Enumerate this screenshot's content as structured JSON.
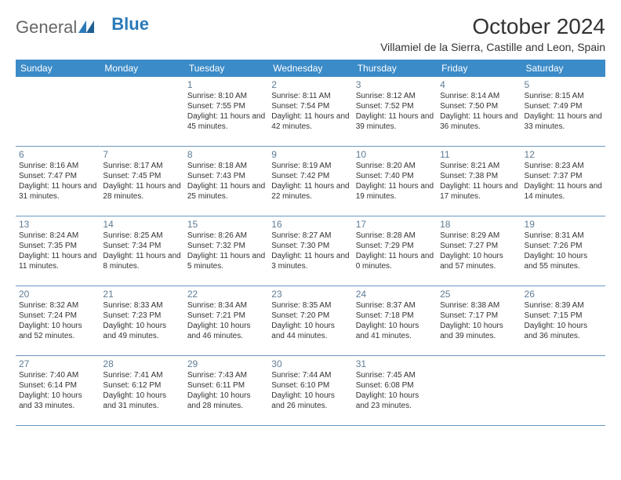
{
  "brand": {
    "part1": "General",
    "part2": "Blue"
  },
  "title": "October 2024",
  "location": "Villamiel de la Sierra, Castille and Leon, Spain",
  "colors": {
    "header_bg": "#3b8bc8",
    "header_text": "#ffffff",
    "daynum": "#5f7c94",
    "rule": "#6a99c2",
    "brand_blue": "#2a7ab9",
    "text": "#333333",
    "bg": "#ffffff"
  },
  "day_labels": [
    "Sunday",
    "Monday",
    "Tuesday",
    "Wednesday",
    "Thursday",
    "Friday",
    "Saturday"
  ],
  "weeks": [
    [
      null,
      null,
      {
        "n": "1",
        "sr": "8:10 AM",
        "ss": "7:55 PM",
        "dl": "11 hours and 45 minutes."
      },
      {
        "n": "2",
        "sr": "8:11 AM",
        "ss": "7:54 PM",
        "dl": "11 hours and 42 minutes."
      },
      {
        "n": "3",
        "sr": "8:12 AM",
        "ss": "7:52 PM",
        "dl": "11 hours and 39 minutes."
      },
      {
        "n": "4",
        "sr": "8:14 AM",
        "ss": "7:50 PM",
        "dl": "11 hours and 36 minutes."
      },
      {
        "n": "5",
        "sr": "8:15 AM",
        "ss": "7:49 PM",
        "dl": "11 hours and 33 minutes."
      }
    ],
    [
      {
        "n": "6",
        "sr": "8:16 AM",
        "ss": "7:47 PM",
        "dl": "11 hours and 31 minutes."
      },
      {
        "n": "7",
        "sr": "8:17 AM",
        "ss": "7:45 PM",
        "dl": "11 hours and 28 minutes."
      },
      {
        "n": "8",
        "sr": "8:18 AM",
        "ss": "7:43 PM",
        "dl": "11 hours and 25 minutes."
      },
      {
        "n": "9",
        "sr": "8:19 AM",
        "ss": "7:42 PM",
        "dl": "11 hours and 22 minutes."
      },
      {
        "n": "10",
        "sr": "8:20 AM",
        "ss": "7:40 PM",
        "dl": "11 hours and 19 minutes."
      },
      {
        "n": "11",
        "sr": "8:21 AM",
        "ss": "7:38 PM",
        "dl": "11 hours and 17 minutes."
      },
      {
        "n": "12",
        "sr": "8:23 AM",
        "ss": "7:37 PM",
        "dl": "11 hours and 14 minutes."
      }
    ],
    [
      {
        "n": "13",
        "sr": "8:24 AM",
        "ss": "7:35 PM",
        "dl": "11 hours and 11 minutes."
      },
      {
        "n": "14",
        "sr": "8:25 AM",
        "ss": "7:34 PM",
        "dl": "11 hours and 8 minutes."
      },
      {
        "n": "15",
        "sr": "8:26 AM",
        "ss": "7:32 PM",
        "dl": "11 hours and 5 minutes."
      },
      {
        "n": "16",
        "sr": "8:27 AM",
        "ss": "7:30 PM",
        "dl": "11 hours and 3 minutes."
      },
      {
        "n": "17",
        "sr": "8:28 AM",
        "ss": "7:29 PM",
        "dl": "11 hours and 0 minutes."
      },
      {
        "n": "18",
        "sr": "8:29 AM",
        "ss": "7:27 PM",
        "dl": "10 hours and 57 minutes."
      },
      {
        "n": "19",
        "sr": "8:31 AM",
        "ss": "7:26 PM",
        "dl": "10 hours and 55 minutes."
      }
    ],
    [
      {
        "n": "20",
        "sr": "8:32 AM",
        "ss": "7:24 PM",
        "dl": "10 hours and 52 minutes."
      },
      {
        "n": "21",
        "sr": "8:33 AM",
        "ss": "7:23 PM",
        "dl": "10 hours and 49 minutes."
      },
      {
        "n": "22",
        "sr": "8:34 AM",
        "ss": "7:21 PM",
        "dl": "10 hours and 46 minutes."
      },
      {
        "n": "23",
        "sr": "8:35 AM",
        "ss": "7:20 PM",
        "dl": "10 hours and 44 minutes."
      },
      {
        "n": "24",
        "sr": "8:37 AM",
        "ss": "7:18 PM",
        "dl": "10 hours and 41 minutes."
      },
      {
        "n": "25",
        "sr": "8:38 AM",
        "ss": "7:17 PM",
        "dl": "10 hours and 39 minutes."
      },
      {
        "n": "26",
        "sr": "8:39 AM",
        "ss": "7:15 PM",
        "dl": "10 hours and 36 minutes."
      }
    ],
    [
      {
        "n": "27",
        "sr": "7:40 AM",
        "ss": "6:14 PM",
        "dl": "10 hours and 33 minutes."
      },
      {
        "n": "28",
        "sr": "7:41 AM",
        "ss": "6:12 PM",
        "dl": "10 hours and 31 minutes."
      },
      {
        "n": "29",
        "sr": "7:43 AM",
        "ss": "6:11 PM",
        "dl": "10 hours and 28 minutes."
      },
      {
        "n": "30",
        "sr": "7:44 AM",
        "ss": "6:10 PM",
        "dl": "10 hours and 26 minutes."
      },
      {
        "n": "31",
        "sr": "7:45 AM",
        "ss": "6:08 PM",
        "dl": "10 hours and 23 minutes."
      },
      null,
      null
    ]
  ],
  "labels": {
    "sunrise": "Sunrise:",
    "sunset": "Sunset:",
    "daylight": "Daylight:"
  }
}
